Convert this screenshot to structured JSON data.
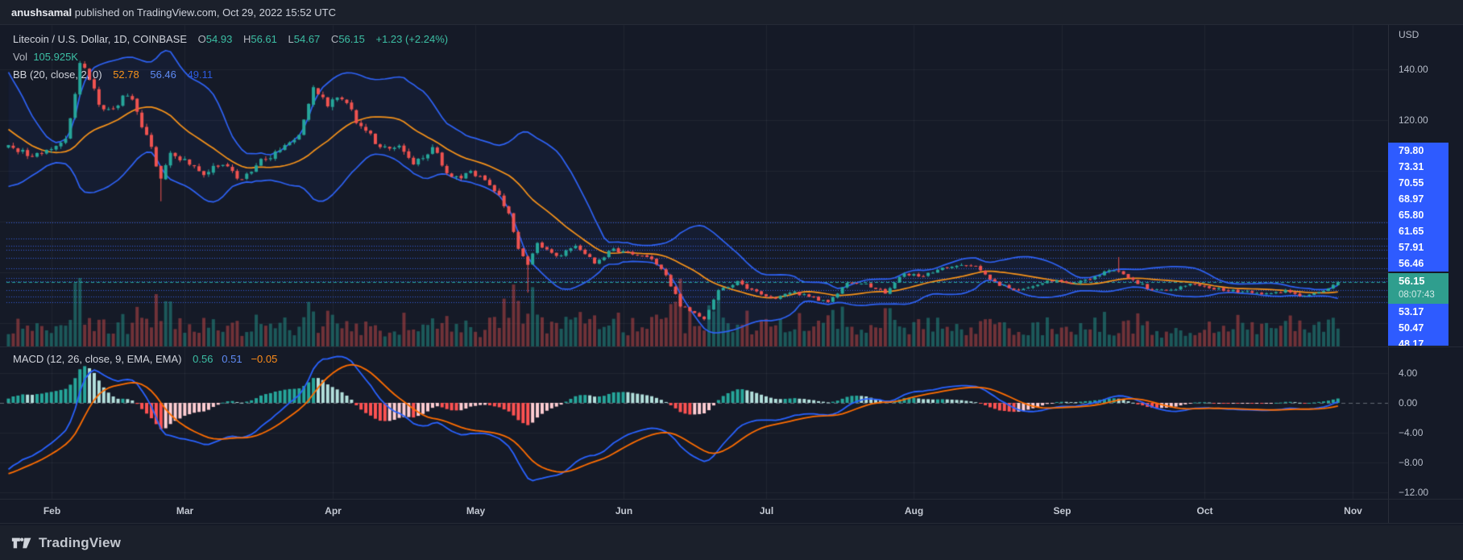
{
  "attribution": {
    "author": "anushsamal",
    "rest": " published on TradingView.com, Oct 29, 2022 15:52 UTC"
  },
  "legend": {
    "title": "Litecoin / U.S. Dollar, 1D, COINBASE",
    "ohlc_labels": [
      "O",
      "H",
      "L",
      "C"
    ],
    "ohlc_values": [
      "54.93",
      "56.61",
      "54.67",
      "56.15"
    ],
    "change": "+1.23 (+2.24%)",
    "vol_label": "Vol",
    "vol_value": "105.925K",
    "bb_label": "BB (20, close, 2, 0)",
    "bb_basis": "52.78",
    "bb_upper": "56.46",
    "bb_lower": "49.11",
    "macd_label": "MACD (12, 26, close, 9, EMA, EMA)",
    "macd_hist": "0.56",
    "macd_line": "0.51",
    "macd_signal": "−0.05"
  },
  "price_axis": {
    "currency": "USD",
    "ticks": [
      "140.00",
      "120.00"
    ],
    "level_labels": [
      "79.80",
      "73.31",
      "70.55",
      "68.97",
      "65.80",
      "61.65",
      "57.91",
      "56.46"
    ],
    "lower_level_labels": [
      "53.17",
      "50.47",
      "48.17"
    ],
    "current": {
      "price": "56.15",
      "countdown": "08:07:43"
    }
  },
  "macd_axis": [
    "4.00",
    "0.00",
    "−4.00",
    "−8.00",
    "−12.00"
  ],
  "time_axis": [
    "Feb",
    "Mar",
    "Apr",
    "May",
    "Jun",
    "Jul",
    "Aug",
    "Sep",
    "Oct",
    "Nov"
  ],
  "footer": {
    "brand": "TradingView"
  },
  "chart_data": {
    "type": "candlestick",
    "symbol": "Litecoin / U.S. Dollar",
    "interval": "1D",
    "exchange": "COINBASE",
    "last_candle": {
      "o": 54.93,
      "h": 56.61,
      "l": 54.67,
      "c": 56.15
    },
    "price_ticks": [
      140,
      120,
      100,
      80,
      60,
      40
    ],
    "levels": [
      79.8,
      73.31,
      70.55,
      68.97,
      65.8,
      61.65,
      57.91,
      56.46,
      53.17,
      50.47,
      48.17
    ],
    "current_price": 56.15,
    "macd_ticks": [
      4,
      0,
      -4,
      -8,
      -12
    ],
    "macd_last": {
      "hist": 0.56,
      "macd": 0.51,
      "signal": -0.05
    },
    "bb_last": {
      "basis": 52.78,
      "upper": 56.46,
      "lower": 49.11
    },
    "last_volume_k": 105.925,
    "month_start_days": [
      9,
      37,
      68,
      98,
      129,
      159,
      190,
      221,
      251,
      282
    ],
    "warmup_keyframes": [
      [
        -30,
        150
      ],
      [
        -22,
        144
      ],
      [
        -16,
        131
      ],
      [
        -11,
        116
      ],
      [
        -8,
        106
      ],
      [
        -5,
        103
      ],
      [
        -2,
        109
      ]
    ],
    "close_keyframes": [
      [
        0,
        111
      ],
      [
        4,
        106
      ],
      [
        8,
        108
      ],
      [
        12,
        112
      ],
      [
        13,
        120
      ],
      [
        15,
        143
      ],
      [
        17,
        136
      ],
      [
        19,
        127
      ],
      [
        21,
        123
      ],
      [
        25,
        131
      ],
      [
        29,
        114
      ],
      [
        32,
        97
      ],
      [
        34,
        107
      ],
      [
        37,
        104
      ],
      [
        41,
        99
      ],
      [
        45,
        103
      ],
      [
        49,
        96
      ],
      [
        53,
        104
      ],
      [
        57,
        108
      ],
      [
        61,
        114
      ],
      [
        64,
        132
      ],
      [
        67,
        126
      ],
      [
        70,
        129
      ],
      [
        74,
        117
      ],
      [
        78,
        110
      ],
      [
        82,
        109
      ],
      [
        85,
        103
      ],
      [
        89,
        109
      ],
      [
        93,
        97
      ],
      [
        97,
        99
      ],
      [
        100,
        96
      ],
      [
        103,
        90
      ],
      [
        105,
        84
      ],
      [
        106,
        76
      ],
      [
        107,
        70
      ],
      [
        109,
        63
      ],
      [
        111,
        71
      ],
      [
        115,
        66
      ],
      [
        119,
        70
      ],
      [
        123,
        64
      ],
      [
        127,
        69
      ],
      [
        131,
        67
      ],
      [
        135,
        65
      ],
      [
        138,
        59
      ],
      [
        141,
        47
      ],
      [
        146,
        42
      ],
      [
        149,
        53
      ],
      [
        153,
        56
      ],
      [
        157,
        52
      ],
      [
        161,
        50
      ],
      [
        165,
        52
      ],
      [
        169,
        50
      ],
      [
        172,
        48
      ],
      [
        176,
        56
      ],
      [
        180,
        55
      ],
      [
        184,
        52
      ],
      [
        188,
        60
      ],
      [
        191,
        58
      ],
      [
        195,
        61
      ],
      [
        199,
        63
      ],
      [
        203,
        63
      ],
      [
        207,
        56
      ],
      [
        211,
        53
      ],
      [
        215,
        54
      ],
      [
        219,
        57
      ],
      [
        223,
        56
      ],
      [
        227,
        57
      ],
      [
        231,
        61
      ],
      [
        233,
        60
      ],
      [
        236,
        57
      ],
      [
        240,
        53
      ],
      [
        244,
        53
      ],
      [
        248,
        55
      ],
      [
        252,
        54
      ],
      [
        256,
        53
      ],
      [
        260,
        52
      ],
      [
        264,
        51.5
      ],
      [
        268,
        52.5
      ],
      [
        272,
        50.5
      ],
      [
        276,
        52.5
      ],
      [
        278,
        54.93
      ],
      [
        279,
        56.15
      ]
    ],
    "wick_overrides": {
      "32": {
        "l": 88
      },
      "109": {
        "l": 52
      },
      "146": {
        "l": 41
      },
      "233": {
        "h": 66
      }
    },
    "colors": {
      "candle_up": "#26a69a",
      "candle_down": "#ef5350",
      "vol_up": "rgba(38,166,154,0.45)",
      "vol_down": "rgba(239,83,80,0.42)",
      "bb_band": "#2e62f4",
      "bb_basis": "#f7931a",
      "bb_fill": "rgba(41,98,255,0.055)",
      "level_line": "rgba(62,108,255,0.85)",
      "current_line": "#26a69a",
      "macd_line": "#2962ff",
      "signal_line": "#ff6d00",
      "hist_up_grow": "#26a69a",
      "hist_up_fall": "#b2dfdb",
      "hist_dn_grow": "#ff5252",
      "hist_dn_fall": "#ffcdd2",
      "grid": "rgba(255,255,255,0.05)",
      "zero_dash": "rgba(178,183,194,0.5)",
      "label_bg": "#2e5bff",
      "current_bg": "#2f9e8e"
    }
  }
}
